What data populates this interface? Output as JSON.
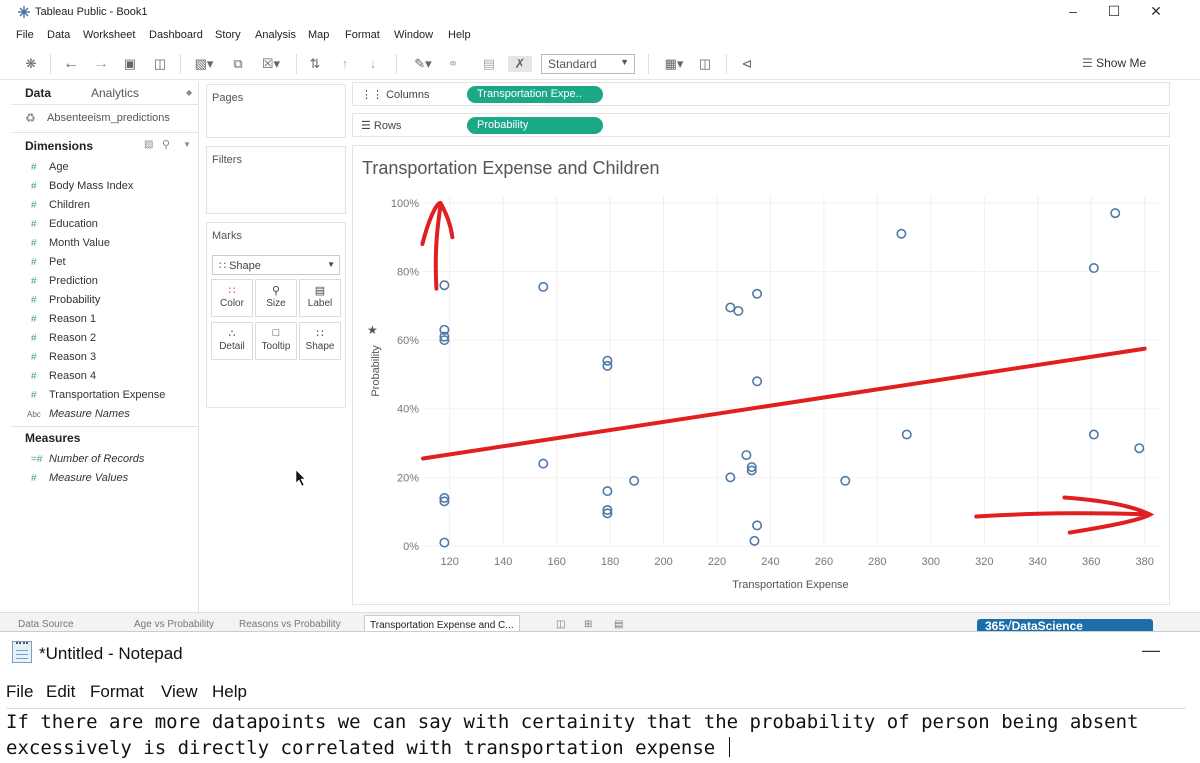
{
  "tableau": {
    "window_title": "Tableau Public - Book1",
    "menu": [
      "File",
      "Data",
      "Worksheet",
      "Dashboard",
      "Story",
      "Analysis",
      "Map",
      "Format",
      "Window",
      "Help"
    ],
    "fit_select": "Standard",
    "show_me": "Show Me",
    "data_pane": {
      "tabs": [
        "Data",
        "Analytics"
      ],
      "datasource": "Absenteeism_predictions",
      "dimensions_label": "Dimensions",
      "dimensions": [
        "Age",
        "Body Mass Index",
        "Children",
        "Education",
        "Month Value",
        "Pet",
        "Prediction",
        "Probability",
        "Reason 1",
        "Reason 2",
        "Reason 3",
        "Reason 4",
        "Transportation Expense"
      ],
      "measure_names": "Measure Names",
      "measures_label": "Measures",
      "measures": [
        "Number of Records",
        "Measure Values"
      ],
      "numeric_type_glyph": "#",
      "abc_type_glyph": "Abc"
    },
    "cards": {
      "pages": "Pages",
      "filters": "Filters",
      "marks": "Marks",
      "mark_type": "Shape",
      "mark_buttons": [
        "Color",
        "Size",
        "Label",
        "Detail",
        "Tooltip",
        "Shape"
      ]
    },
    "shelves": {
      "columns_label": "Columns",
      "columns_pill": "Transportation Expe..",
      "rows_label": "Rows",
      "rows_pill": "Probability"
    },
    "sheet_tabs": [
      "Data Source",
      "Age vs Probability",
      "Reasons vs Probability",
      "Transportation Expense and C..."
    ],
    "logo_text": "365√DataScience"
  },
  "chart_data": {
    "type": "scatter",
    "title": "Transportation Expense and Children",
    "xlabel": "Transportation Expense",
    "ylabel": "Probability",
    "xlim": [
      110,
      385
    ],
    "ylim": [
      0,
      1.02
    ],
    "x_ticks": [
      120,
      140,
      160,
      180,
      200,
      220,
      240,
      260,
      280,
      300,
      320,
      340,
      360,
      380
    ],
    "y_ticks": [
      0,
      0.2,
      0.4,
      0.6,
      0.8,
      1.0
    ],
    "y_tick_labels": [
      "0%",
      "20%",
      "40%",
      "60%",
      "80%",
      "100%"
    ],
    "grid": true,
    "marker": "open-circle",
    "color": "#4e79a7",
    "points": [
      [
        118,
        0.76
      ],
      [
        118,
        0.63
      ],
      [
        118,
        0.61
      ],
      [
        118,
        0.6
      ],
      [
        118,
        0.14
      ],
      [
        118,
        0.13
      ],
      [
        118,
        0.01
      ],
      [
        155,
        0.755
      ],
      [
        155,
        0.24
      ],
      [
        179,
        0.54
      ],
      [
        179,
        0.525
      ],
      [
        179,
        0.16
      ],
      [
        179,
        0.105
      ],
      [
        179,
        0.095
      ],
      [
        189,
        0.19
      ],
      [
        225,
        0.695
      ],
      [
        225,
        0.2
      ],
      [
        228,
        0.685
      ],
      [
        231,
        0.265
      ],
      [
        233,
        0.23
      ],
      [
        233,
        0.22
      ],
      [
        234,
        0.015
      ],
      [
        235,
        0.735
      ],
      [
        235,
        0.48
      ],
      [
        235,
        0.06
      ],
      [
        268,
        0.19
      ],
      [
        289,
        0.91
      ],
      [
        291,
        0.325
      ],
      [
        361,
        0.81
      ],
      [
        361,
        0.325
      ],
      [
        369,
        0.97
      ],
      [
        378,
        0.285
      ]
    ]
  },
  "annotations": {
    "color": "#e02020",
    "trend_line": {
      "from": [
        110,
        0.255
      ],
      "to": [
        380,
        0.575
      ]
    },
    "up_arrow_at_x": 121,
    "right_arrow_at_y": 0.08
  },
  "notepad": {
    "title": "*Untitled - Notepad",
    "menu": [
      "File",
      "Edit",
      "Format",
      "View",
      "Help"
    ],
    "text": "If there are more datapoints we can say with certainity that the probability of person being absent excessively is directly correlated with transportation expense "
  }
}
